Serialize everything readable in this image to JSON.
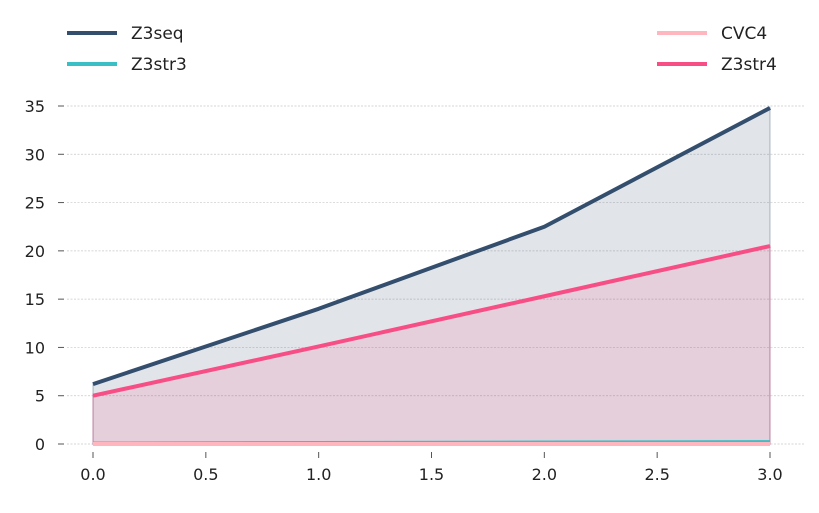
{
  "chart_data": {
    "type": "area",
    "title": "",
    "xlabel": "",
    "ylabel": "",
    "x": [
      0,
      1,
      2,
      3
    ],
    "xlim": [
      0,
      3
    ],
    "ylim": [
      0,
      35
    ],
    "xticks": [
      0,
      0.5,
      1,
      1.5,
      2,
      2.5,
      3
    ],
    "xtick_labels": [
      "0.0",
      "0.5",
      "1.0",
      "1.5",
      "2.0",
      "2.5",
      "3.0"
    ],
    "yticks": [
      0,
      5,
      10,
      15,
      20,
      25,
      30,
      35
    ],
    "ytick_labels": [
      "0",
      "5",
      "10",
      "15",
      "20",
      "25",
      "30",
      "35"
    ],
    "grid": "horizontal",
    "legend_placement": "top",
    "series": [
      {
        "name": "Z3seq",
        "values": [
          6.2,
          14.0,
          22.5,
          34.8
        ],
        "color": "#344e6e",
        "fill": true
      },
      {
        "name": "Z3str3",
        "values": [
          0.05,
          0.1,
          0.15,
          0.2
        ],
        "color": "#3bbfc6",
        "fill": false
      },
      {
        "name": "CVC4",
        "values": [
          0.0,
          0.0,
          0.0,
          0.0
        ],
        "color": "#ffb6bf",
        "fill": false
      },
      {
        "name": "Z3str4",
        "values": [
          5.0,
          10.1,
          15.3,
          20.5
        ],
        "color": "#f74e86",
        "fill": true
      }
    ],
    "fill_colors": {
      "Z3seq": "#344e6e",
      "Z3str4": "#f74e86"
    }
  }
}
